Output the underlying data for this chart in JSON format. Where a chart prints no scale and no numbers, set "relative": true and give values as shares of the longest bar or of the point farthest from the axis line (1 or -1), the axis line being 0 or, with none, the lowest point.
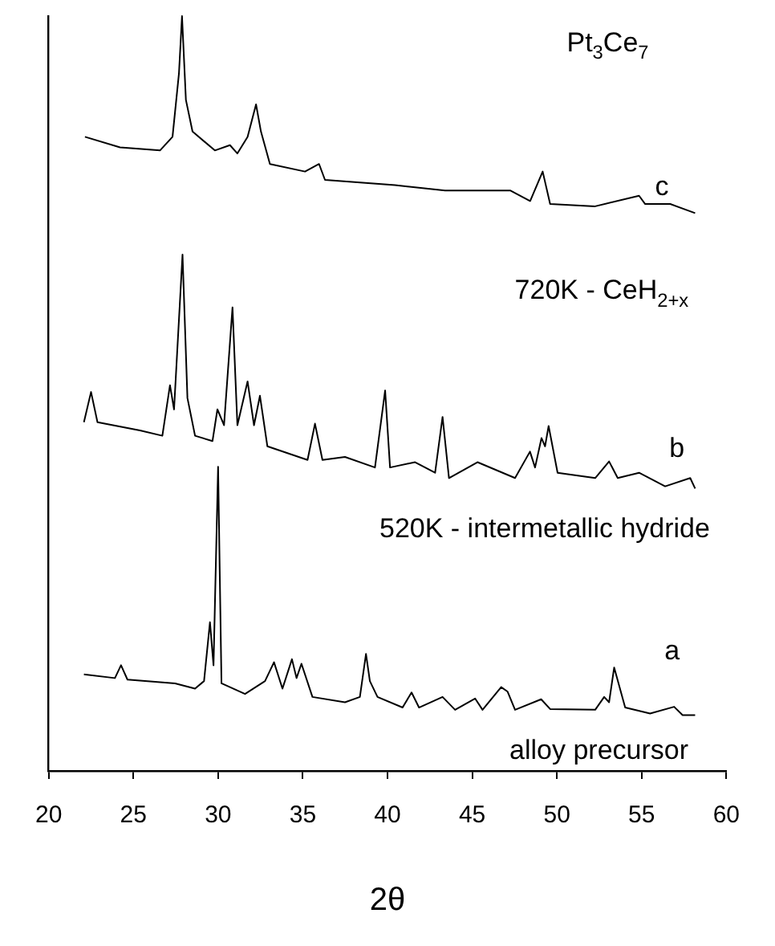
{
  "chart_data": {
    "type": "line",
    "relative": true,
    "xlabel": "2θ",
    "xlim": [
      20,
      60
    ],
    "xticks": [
      20,
      25,
      30,
      35,
      40,
      45,
      50,
      55,
      60
    ],
    "grid": false,
    "legend": false,
    "marker": "none",
    "line_style": "solid",
    "series": [
      {
        "color": "#000000",
        "x": [
          22.14,
          24.21,
          26.57,
          27.31,
          27.69,
          27.87,
          28.1,
          28.49,
          29.81,
          30.7,
          31.14,
          31.74,
          32.24,
          32.53,
          33.06,
          35.13,
          35.96,
          36.31,
          40.44,
          43.4,
          47.24,
          48.42,
          49.16,
          49.6,
          52.26,
          54.85,
          55.21,
          56.69,
          58.16
        ],
        "values": [
          0.84,
          0.826,
          0.822,
          0.84,
          0.924,
          1,
          0.889,
          0.847,
          0.822,
          0.829,
          0.818,
          0.84,
          0.883,
          0.847,
          0.804,
          0.794,
          0.804,
          0.783,
          0.776,
          0.769,
          0.769,
          0.755,
          0.794,
          0.751,
          0.748,
          0.762,
          0.751,
          0.751,
          0.739
        ]
      },
      {
        "color": "#000000",
        "x": [
          22.08,
          22.5,
          22.88,
          25.39,
          26.71,
          27.16,
          27.4,
          27.9,
          28.19,
          28.64,
          29.67,
          29.96,
          30.35,
          30.85,
          31.14,
          31.74,
          32.12,
          32.47,
          32.91,
          35.28,
          35.72,
          36.16,
          37.49,
          39.26,
          39.86,
          40.15,
          41.63,
          42.81,
          43.25,
          43.63,
          45.31,
          47.53,
          48.41,
          48.71,
          49.09,
          49.3,
          49.51,
          50.04,
          52.26,
          53.08,
          53.59,
          54.85,
          56.39,
          57.87,
          58.16
        ],
        "values": [
          0.462,
          0.502,
          0.462,
          0.451,
          0.444,
          0.511,
          0.479,
          0.684,
          0.494,
          0.444,
          0.437,
          0.479,
          0.458,
          0.614,
          0.458,
          0.516,
          0.458,
          0.497,
          0.43,
          0.412,
          0.46,
          0.412,
          0.416,
          0.402,
          0.504,
          0.402,
          0.409,
          0.395,
          0.469,
          0.388,
          0.409,
          0.388,
          0.423,
          0.402,
          0.441,
          0.43,
          0.457,
          0.395,
          0.388,
          0.41,
          0.388,
          0.395,
          0.377,
          0.388,
          0.374
        ]
      },
      {
        "color": "#000000",
        "x": [
          22.08,
          23.91,
          24.27,
          24.65,
          27.46,
          28.64,
          29.17,
          29.52,
          29.73,
          30.0,
          30.2,
          31.59,
          32.77,
          33.3,
          33.8,
          34.36,
          34.63,
          34.92,
          35.57,
          37.49,
          38.37,
          38.73,
          38.96,
          39.41,
          40.89,
          41.42,
          41.86,
          43.25,
          43.99,
          45.17,
          45.61,
          46.71,
          47.09,
          47.53,
          49.07,
          49.6,
          52.26,
          52.79,
          53.08,
          53.38,
          54.03,
          55.5,
          56.92,
          57.42,
          58.16
        ],
        "values": [
          0.128,
          0.123,
          0.14,
          0.121,
          0.116,
          0.109,
          0.119,
          0.197,
          0.14,
          0.403,
          0.116,
          0.102,
          0.119,
          0.144,
          0.109,
          0.148,
          0.123,
          0.142,
          0.098,
          0.091,
          0.098,
          0.155,
          0.119,
          0.098,
          0.084,
          0.104,
          0.084,
          0.098,
          0.081,
          0.096,
          0.081,
          0.111,
          0.105,
          0.081,
          0.095,
          0.082,
          0.081,
          0.098,
          0.091,
          0.137,
          0.084,
          0.076,
          0.085,
          0.074,
          0.074
        ]
      }
    ],
    "annotations": [
      "Pt$_{3}$Ce$_{7}$",
      "c",
      "720K - CeH$_{2+x}$",
      "b",
      "520K - intermetallic hydride",
      "a",
      "alloy precursor"
    ]
  }
}
